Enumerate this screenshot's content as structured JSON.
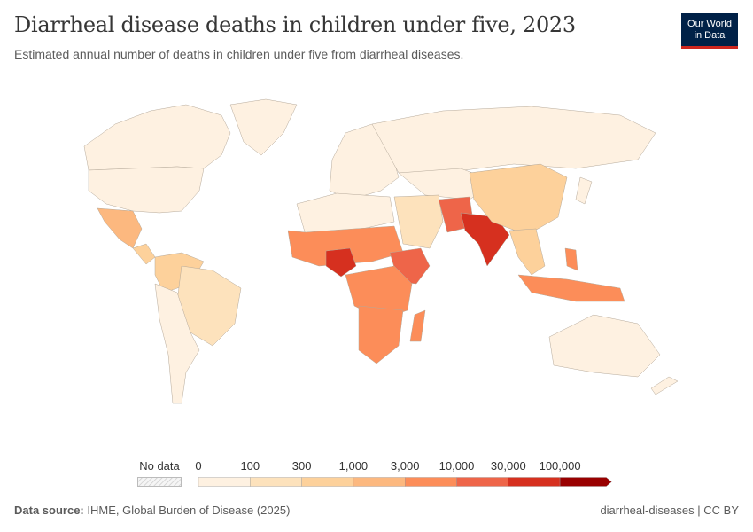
{
  "header": {
    "title": "Diarrheal disease deaths in children under five, 2023",
    "subtitle": "Estimated annual number of deaths in children under five from diarrheal diseases.",
    "logo": "Our World in Data"
  },
  "legend": {
    "no_data_label": "No data",
    "bins": [
      "0",
      "100",
      "300",
      "1,000",
      "3,000",
      "10,000",
      "30,000",
      "100,000"
    ],
    "colors": [
      "#fef1e1",
      "#fde2bc",
      "#fdd19b",
      "#fcb87f",
      "#fc8d59",
      "#ee6549",
      "#d6301f",
      "#990000"
    ],
    "no_data_color": "#e6e6e6"
  },
  "footer": {
    "source_label": "Data source:",
    "source": "IHME, Global Burden of Disease (2025)",
    "slug": "diarrheal-diseases | CC BY"
  }
}
